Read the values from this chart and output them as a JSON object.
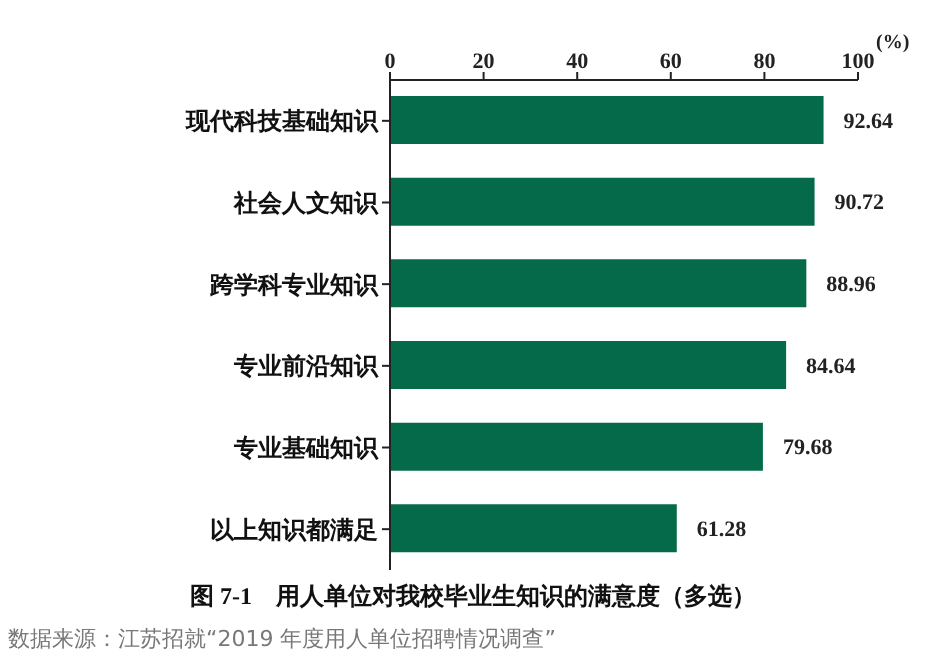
{
  "chart_data": {
    "type": "bar",
    "orientation": "horizontal",
    "title": "图 7-1　用人单位对我校毕业生知识的满意度（多选）",
    "xlabel": "(%)",
    "categories": [
      "现代科技基础知识",
      "社会人文知识",
      "跨学科专业知识",
      "专业前沿知识",
      "专业基础知识",
      "以上知识都满足"
    ],
    "values": [
      92.64,
      90.72,
      88.96,
      84.64,
      79.68,
      61.28
    ],
    "color": "#046a4a",
    "xlim": [
      0,
      100
    ],
    "xticks": [
      0,
      20,
      40,
      60,
      80,
      100
    ],
    "grid": false,
    "data_labels": true,
    "annotations": [
      "数据来源：江苏招就“2019 年度用人单位招聘情况调查”"
    ]
  }
}
